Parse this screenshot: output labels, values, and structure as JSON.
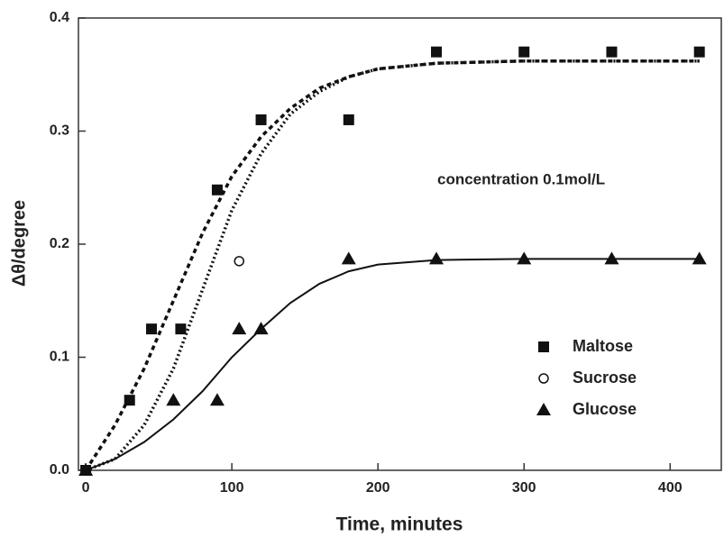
{
  "chart_data": {
    "type": "scatter",
    "xlabel": "Time, minutes",
    "ylabel": "Δθ/degree",
    "annotation": "concentration 0.1mol/L",
    "xlim": [
      -5,
      435
    ],
    "ylim": [
      0,
      0.4
    ],
    "xticks": [
      0,
      100,
      200,
      300,
      400
    ],
    "yticks": [
      {
        "value": 0,
        "label": "0.0"
      },
      0.1,
      0.2,
      0.3,
      0.4
    ],
    "series": [
      {
        "name": "Maltose",
        "color": "#111111",
        "marker": "square",
        "x": [
          0,
          30,
          45,
          65,
          90,
          120,
          180,
          240,
          300,
          360,
          420
        ],
        "values": [
          0,
          0.062,
          0.125,
          0.125,
          0.248,
          0.31,
          0.31,
          0.37,
          0.37,
          0.37,
          0.37
        ],
        "fit": {
          "dash": "5,4",
          "x": [
            0,
            20,
            40,
            60,
            80,
            100,
            120,
            140,
            160,
            180,
            200,
            240,
            300,
            360,
            420
          ],
          "y": [
            0,
            0.04,
            0.09,
            0.15,
            0.21,
            0.26,
            0.295,
            0.32,
            0.338,
            0.348,
            0.355,
            0.36,
            0.362,
            0.362,
            0.362
          ]
        }
      },
      {
        "name": "Sucrose",
        "color": "#111111",
        "marker": "circle",
        "x": [
          0,
          90,
          105,
          120,
          180,
          240,
          300,
          360,
          420
        ],
        "values": [
          0,
          0.248,
          0.185,
          0.31,
          0.31,
          0.37,
          0.37,
          0.37,
          0.37
        ],
        "fit": {
          "dash": "2,3",
          "x": [
            0,
            20,
            40,
            60,
            80,
            100,
            120,
            140,
            160,
            180,
            200,
            240,
            300,
            360,
            420
          ],
          "y": [
            0,
            0.01,
            0.04,
            0.09,
            0.16,
            0.23,
            0.28,
            0.315,
            0.335,
            0.348,
            0.355,
            0.36,
            0.362,
            0.362,
            0.362
          ]
        }
      },
      {
        "name": "Glucose",
        "color": "#111111",
        "marker": "triangle",
        "x": [
          0,
          60,
          90,
          105,
          120,
          180,
          240,
          300,
          360,
          420
        ],
        "values": [
          0,
          0.062,
          0.062,
          0.125,
          0.125,
          0.187,
          0.187,
          0.187,
          0.187,
          0.187
        ],
        "fit": {
          "dash": "none",
          "x": [
            0,
            20,
            40,
            60,
            80,
            100,
            120,
            140,
            160,
            180,
            200,
            240,
            300,
            360,
            420
          ],
          "y": [
            0,
            0.01,
            0.025,
            0.045,
            0.07,
            0.1,
            0.125,
            0.148,
            0.165,
            0.176,
            0.182,
            0.186,
            0.187,
            0.187,
            0.187
          ]
        }
      }
    ]
  }
}
